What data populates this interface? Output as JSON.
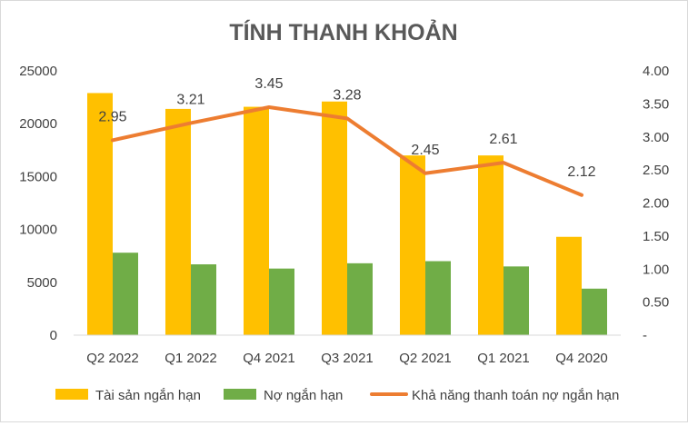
{
  "chart_data": {
    "type": "bar",
    "title": "TÍNH THANH KHOẢN",
    "categories": [
      "Q2 2022",
      "Q1 2022",
      "Q4 2021",
      "Q3 2021",
      "Q2 2021",
      "Q1 2021",
      "Q4 2020"
    ],
    "series": [
      {
        "name": "Tài sản ngắn hạn",
        "type": "bar",
        "axis": "left",
        "color": "#FFC000",
        "values": [
          22900,
          21400,
          21600,
          22100,
          17000,
          17000,
          9300
        ]
      },
      {
        "name": "Nợ ngắn hạn",
        "type": "bar",
        "axis": "left",
        "color": "#70AD47",
        "values": [
          7800,
          6700,
          6300,
          6800,
          7000,
          6500,
          4400
        ]
      },
      {
        "name": "Khả năng thanh toán nợ ngắn hạn",
        "type": "line",
        "axis": "right",
        "color": "#ED7D31",
        "values": [
          2.95,
          3.21,
          3.45,
          3.28,
          2.45,
          2.61,
          2.12
        ],
        "labels": [
          "2.95",
          "3.21",
          "3.45",
          "3.28",
          "2.45",
          "2.61",
          "2.12"
        ]
      }
    ],
    "y_left": {
      "lim": [
        0,
        25000
      ],
      "ticks": [
        0,
        5000,
        10000,
        15000,
        20000,
        25000
      ],
      "tick_labels": [
        "0",
        "5000",
        "10000",
        "15000",
        "20000",
        "25000"
      ]
    },
    "y_right": {
      "lim": [
        0,
        4
      ],
      "ticks": [
        0,
        0.5,
        1,
        1.5,
        2,
        2.5,
        3,
        3.5,
        4
      ],
      "tick_labels": [
        "-",
        "0.50",
        "1.00",
        "1.50",
        "2.00",
        "2.50",
        "3.00",
        "3.50",
        "4.00"
      ]
    },
    "grid": false,
    "legend_position": "bottom"
  }
}
